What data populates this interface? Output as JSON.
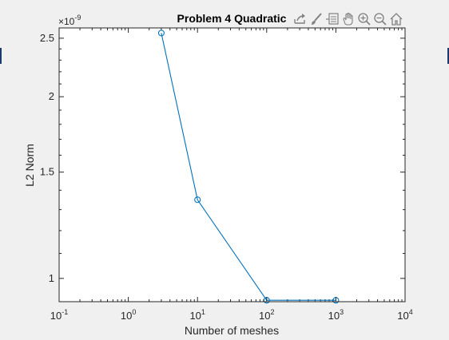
{
  "toolbar": {
    "icons": [
      "export-icon",
      "brush-icon",
      "datatips-icon",
      "pan-icon",
      "zoom-in-icon",
      "zoom-out-icon",
      "home-icon"
    ]
  },
  "chart_data": {
    "type": "line",
    "title": "Problem 4 Quadratic",
    "xlabel": "Number of meshes",
    "ylabel": "L2 Norm",
    "xscale": "log",
    "yscale": "log",
    "xlim": [
      0.1,
      10000
    ],
    "ylim": [
      0.915,
      2.6
    ],
    "y_exponent_label": "×10^{-9}",
    "x_ticks": [
      {
        "value": 0.1,
        "base": "10",
        "exp": "-1"
      },
      {
        "value": 1,
        "base": "10",
        "exp": "0"
      },
      {
        "value": 10,
        "base": "10",
        "exp": "1"
      },
      {
        "value": 100,
        "base": "10",
        "exp": "2"
      },
      {
        "value": 1000,
        "base": "10",
        "exp": "3"
      },
      {
        "value": 10000,
        "base": "10",
        "exp": "4"
      }
    ],
    "y_ticks": [
      {
        "value": 1,
        "label": "1"
      },
      {
        "value": 1.5,
        "label": "1.5"
      },
      {
        "value": 2,
        "label": "2"
      },
      {
        "value": 2.5,
        "label": "2.5"
      }
    ],
    "series": [
      {
        "color": "#0072bd",
        "marker": "circle",
        "x": [
          3,
          10,
          100,
          1000
        ],
        "y": [
          2.55,
          1.35,
          0.92,
          0.92
        ]
      }
    ],
    "grid": false,
    "legend": "none"
  }
}
